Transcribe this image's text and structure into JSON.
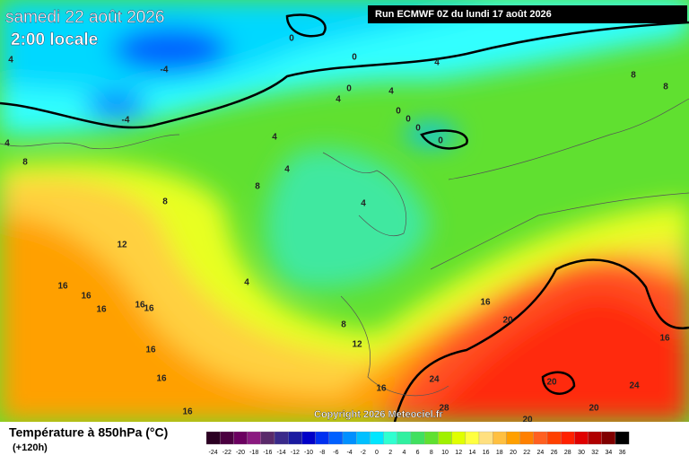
{
  "header": {
    "date": "samedi 22 août 2026",
    "time": "2:00 locale",
    "run": "Run ECMWF 0Z du lundi 17 août 2026",
    "copyright": "Copyright 2026 Meteociel.fr"
  },
  "footer": {
    "title": "Température à 850hPa (°C)",
    "lead": "(+120h)"
  },
  "contour_labels": [
    0,
    -4,
    4,
    0,
    4,
    8,
    8,
    0,
    4,
    4,
    0,
    0,
    0,
    0,
    -4,
    4,
    8,
    4,
    4,
    8,
    8,
    4,
    12,
    16,
    16,
    16,
    16,
    16,
    4,
    16,
    20,
    8,
    12,
    16,
    16,
    16,
    24,
    28,
    20,
    16,
    24,
    20,
    16,
    20
  ],
  "scale": {
    "ticks": [
      -24,
      -22,
      -20,
      -18,
      -16,
      -14,
      -12,
      -10,
      -8,
      -6,
      -4,
      -2,
      0,
      2,
      4,
      6,
      8,
      10,
      12,
      14,
      16,
      18,
      20,
      22,
      24,
      26,
      28,
      30,
      32,
      34,
      36
    ],
    "colors": [
      "#2b0022",
      "#4b0040",
      "#6b0060",
      "#8b1a80",
      "#5a2a6a",
      "#3a2a8a",
      "#1a1aa0",
      "#0000c8",
      "#0030f0",
      "#0060ff",
      "#0090ff",
      "#00c0ff",
      "#00e6ff",
      "#30ffd0",
      "#30f0a0",
      "#40e060",
      "#60e030",
      "#a0f000",
      "#e0ff00",
      "#ffff40",
      "#ffe080",
      "#ffc040",
      "#ffa000",
      "#ff8000",
      "#ff6020",
      "#ff4000",
      "#ff2000",
      "#e00000",
      "#b00000",
      "#800000",
      "#000000"
    ]
  }
}
